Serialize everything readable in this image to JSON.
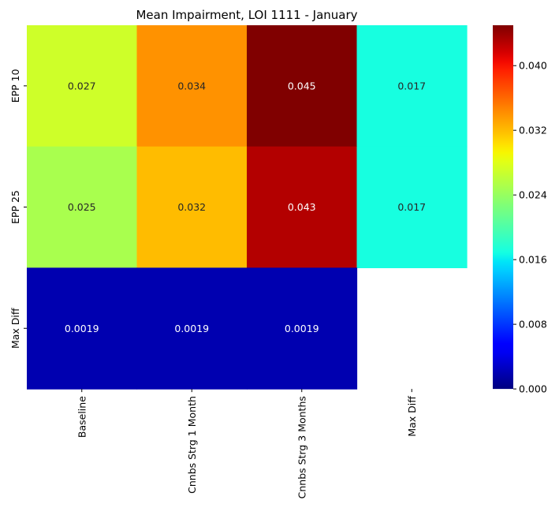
{
  "chart_data": {
    "type": "heatmap",
    "title": "Mean Impairment, LOI 1111 - January",
    "x_categories": [
      "Baseline",
      "Cnnbs Strg 1 Month",
      "Cnnbs Strg 3 Months",
      "Max Diff"
    ],
    "y_categories": [
      "EPP 10",
      "EPP 25",
      "Max Diff"
    ],
    "values": [
      [
        0.027,
        0.034,
        0.045,
        0.017
      ],
      [
        0.025,
        0.032,
        0.043,
        0.017
      ],
      [
        0.0019,
        0.0019,
        0.0019,
        null
      ]
    ],
    "cell_labels": [
      [
        "0.027",
        "0.034",
        "0.045",
        "0.017"
      ],
      [
        "0.025",
        "0.032",
        "0.043",
        "0.017"
      ],
      [
        "0.0019",
        "0.0019",
        "0.0019",
        ""
      ]
    ],
    "colormap": "jet",
    "color_range": [
      0.0,
      0.045
    ],
    "colorbar_ticks": [
      0.0,
      0.008,
      0.016,
      0.024,
      0.032,
      0.04
    ],
    "colorbar_tick_labels": [
      "0.000",
      "0.008",
      "0.016",
      "0.024",
      "0.032",
      "0.040"
    ],
    "missing_cell_color": "#ffffff"
  }
}
